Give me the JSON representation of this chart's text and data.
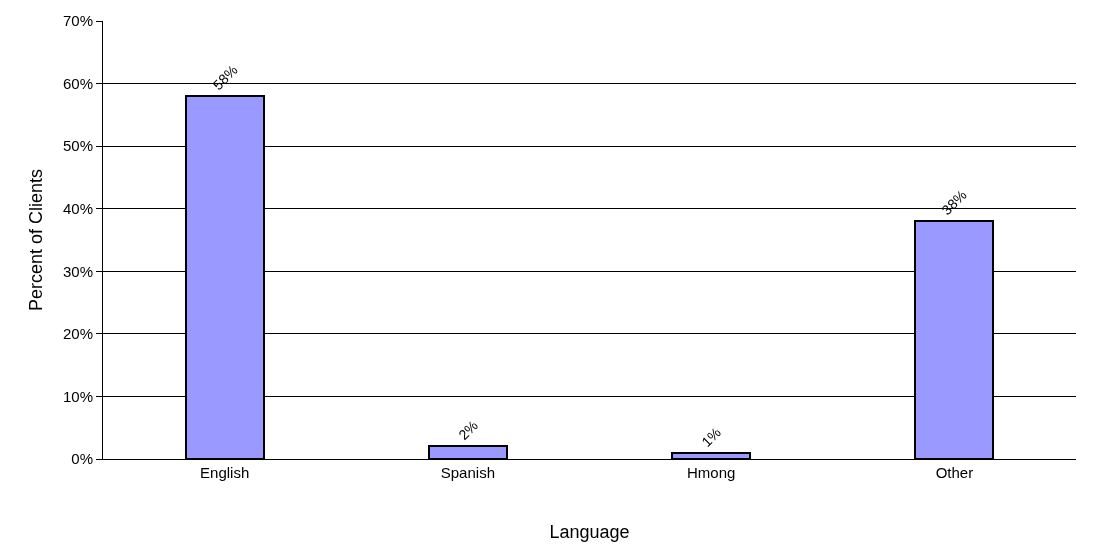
{
  "chart_data": {
    "type": "bar",
    "xlabel": "Language",
    "ylabel": "Percent of Clients",
    "categories": [
      "English",
      "Spanish",
      "Hmong",
      "Other"
    ],
    "values": [
      58,
      2,
      1,
      38
    ],
    "value_labels": [
      "58%",
      "2%",
      "1%",
      "38%"
    ],
    "color": "#9999ff",
    "ylim": [
      0,
      70
    ],
    "yticks": [
      {
        "value": 0,
        "label": "0%"
      },
      {
        "value": 10,
        "label": "10%"
      },
      {
        "value": 20,
        "label": "20%"
      },
      {
        "value": 30,
        "label": "30%"
      },
      {
        "value": 40,
        "label": "40%"
      },
      {
        "value": 50,
        "label": "50%"
      },
      {
        "value": 60,
        "label": "60%"
      },
      {
        "value": 70,
        "label": "70%"
      }
    ],
    "grid": "y",
    "legend": false
  }
}
